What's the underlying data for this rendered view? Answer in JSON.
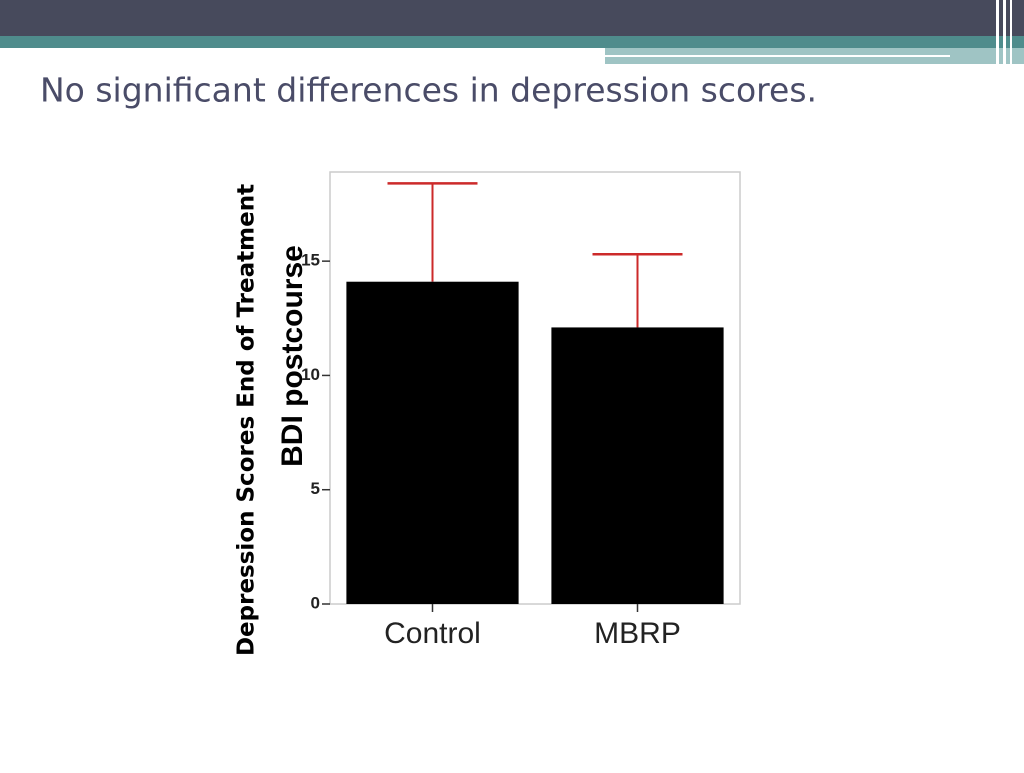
{
  "chart_data": {
    "type": "bar",
    "title": "No significant differences in depression scores.",
    "y_label": "BDI postcourse",
    "y_label_overlay": "Depression Scores End of Treatment",
    "categories": [
      "Control",
      "MBRP"
    ],
    "values": [
      14.1,
      12.1
    ],
    "errors": [
      4.3,
      3.2
    ],
    "color": "#000000",
    "error_color": "#cc2a2a",
    "ylim": [
      0,
      18.9
    ],
    "yticks": [
      0,
      5,
      10,
      15
    ],
    "grid": false
  }
}
